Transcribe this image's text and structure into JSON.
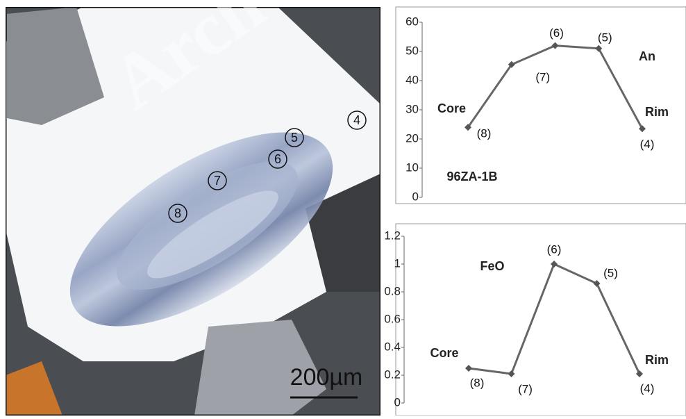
{
  "image": {
    "labels": [
      "4",
      "5",
      "6",
      "7",
      "8"
    ],
    "scale_bar": "200µm",
    "watermark": "Arch"
  },
  "chart_data": [
    {
      "type": "line",
      "categories": [
        "(8)",
        "(7)",
        "(6)",
        "(5)",
        "(4)"
      ],
      "values": [
        24,
        45.5,
        52,
        51,
        23.5
      ],
      "color": "#666666",
      "ylim": [
        0,
        60
      ],
      "yticks": [
        0,
        10,
        20,
        30,
        40,
        50,
        60
      ],
      "annotations": [
        "Core",
        "Rim",
        "An",
        "96ZA-1B"
      ]
    },
    {
      "type": "line",
      "categories": [
        "(8)",
        "(7)",
        "(6)",
        "(5)",
        "(4)"
      ],
      "values": [
        0.25,
        0.21,
        1.0,
        0.86,
        0.21
      ],
      "color": "#666666",
      "ylim": [
        0,
        1.2
      ],
      "yticks": [
        0,
        0.2,
        0.4,
        0.6,
        0.8,
        1,
        1.2
      ],
      "annotations": [
        "FeO",
        "Core",
        "Rim"
      ]
    }
  ]
}
